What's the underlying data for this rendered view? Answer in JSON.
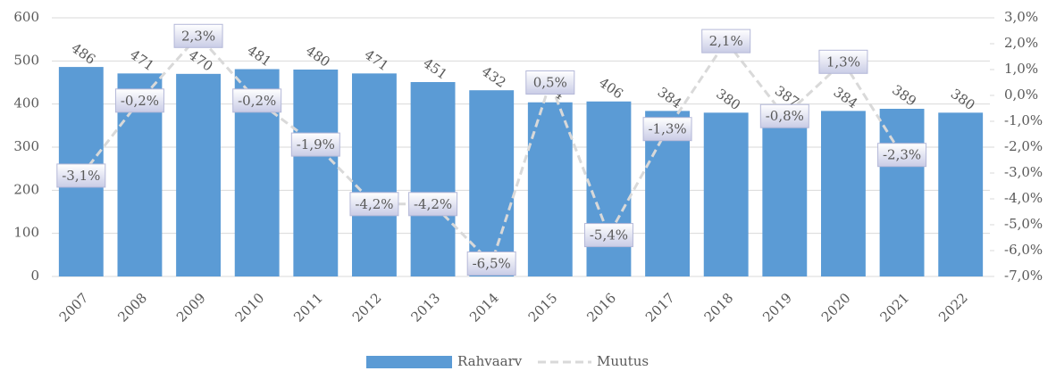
{
  "chart_data": {
    "type": "bar",
    "categories": [
      "2007",
      "2008",
      "2009",
      "2010",
      "2011",
      "2012",
      "2013",
      "2014",
      "2015",
      "2016",
      "2017",
      "2018",
      "2019",
      "2020",
      "2021",
      "2022"
    ],
    "series": [
      {
        "name": "Rahvaarv",
        "type": "bar",
        "color": "#5b9bd5",
        "values": [
          486,
          471,
          470,
          481,
          480,
          471,
          451,
          432,
          404,
          406,
          384,
          380,
          387,
          384,
          389,
          380
        ]
      },
      {
        "name": "Muutus",
        "type": "line",
        "axis": "y2",
        "color": "#d9d9d9",
        "values": [
          -3.1,
          -0.2,
          2.3,
          -0.2,
          -1.9,
          -4.2,
          -4.2,
          -6.5,
          0.5,
          -5.4,
          -1.3,
          2.1,
          -0.8,
          1.3,
          -2.3,
          null
        ],
        "value_labels": [
          "-3,1%",
          "-0,2%",
          "2,3%",
          "-0,2%",
          "-1,9%",
          "-4,2%",
          "-4,2%",
          "-6,5%",
          "0,5%",
          "-5,4%",
          "-1,3%",
          "2,1%",
          "-0,8%",
          "1,3%",
          "-2,3%",
          null
        ]
      }
    ],
    "ylim": [
      0,
      600
    ],
    "yticks": [
      0,
      100,
      200,
      300,
      400,
      500,
      600
    ],
    "y2lim": [
      -7,
      3
    ],
    "y2ticks": [
      {
        "value": -7,
        "label": "-7,0%"
      },
      {
        "value": -6,
        "label": "-6,0%"
      },
      {
        "value": -5,
        "label": "-5,0%"
      },
      {
        "value": -4,
        "label": "-4,0%"
      },
      {
        "value": -3,
        "label": "-3,0%"
      },
      {
        "value": -2,
        "label": "-2,0%"
      },
      {
        "value": -1,
        "label": "-1,0%"
      },
      {
        "value": 0,
        "label": "0,0%"
      },
      {
        "value": 1,
        "label": "1,0%"
      },
      {
        "value": 2,
        "label": "2,0%"
      },
      {
        "value": 3,
        "label": "3,0%"
      }
    ],
    "grid": true,
    "legend": "bottom"
  }
}
